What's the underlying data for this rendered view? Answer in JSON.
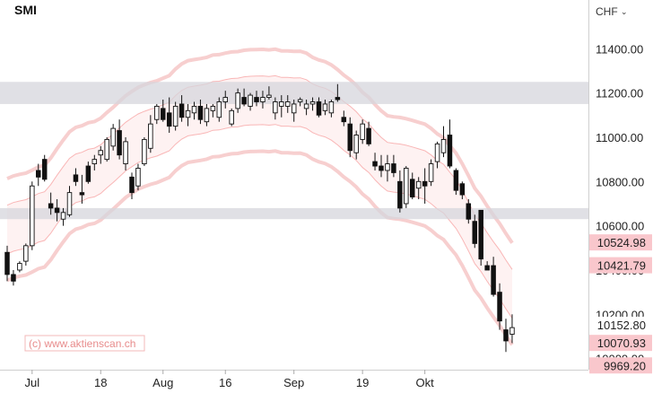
{
  "chart_data": {
    "type": "candlestick",
    "title": "SMI",
    "currency_label": "CHF",
    "watermark": "(c) www.aktienscan.ch",
    "ylim": [
      9950,
      11620
    ],
    "x_ticks": [
      {
        "label": "Jul",
        "x": 4
      },
      {
        "label": "18",
        "x": 15
      },
      {
        "label": "Aug",
        "x": 25
      },
      {
        "label": "16",
        "x": 35
      },
      {
        "label": "Sep",
        "x": 46
      },
      {
        "label": "19",
        "x": 57
      },
      {
        "label": "Okt",
        "x": 67
      }
    ],
    "y_ticks": [
      11400,
      11200,
      11000,
      10800,
      10600,
      10400,
      10200,
      10000
    ],
    "price_labels": [
      {
        "text": "10524.98",
        "value": 10524.98,
        "highlight": true
      },
      {
        "text": "10421.79",
        "value": 10421.79,
        "highlight": true
      },
      {
        "text": "10152.80",
        "value": 10152.8,
        "highlight": false
      },
      {
        "text": "10070.93",
        "value": 10070.93,
        "highlight": true
      },
      {
        "text": "9969.20",
        "value": 9969.2,
        "highlight": true
      }
    ],
    "zones": [
      {
        "from": 11150,
        "to": 11250
      },
      {
        "from": 10630,
        "to": 10680
      }
    ],
    "candles": [
      [
        0,
        10480,
        10510,
        10350,
        10380
      ],
      [
        1,
        10380,
        10400,
        10330,
        10350
      ],
      [
        2,
        10400,
        10440,
        10390,
        10430
      ],
      [
        3,
        10440,
        10520,
        10420,
        10510
      ],
      [
        4,
        10510,
        10800,
        10490,
        10780
      ],
      [
        5,
        10850,
        10880,
        10780,
        10820
      ],
      [
        6,
        10900,
        10920,
        10800,
        10810
      ],
      [
        7,
        10700,
        10750,
        10650,
        10680
      ],
      [
        8,
        10680,
        10720,
        10620,
        10660
      ],
      [
        9,
        10630,
        10680,
        10600,
        10660
      ],
      [
        10,
        10650,
        10780,
        10640,
        10750
      ],
      [
        11,
        10830,
        10860,
        10780,
        10800
      ],
      [
        12,
        10750,
        10830,
        10700,
        10740
      ],
      [
        13,
        10870,
        10890,
        10790,
        10800
      ],
      [
        14,
        10880,
        10920,
        10850,
        10900
      ],
      [
        15,
        10920,
        10960,
        10880,
        10940
      ],
      [
        16,
        10900,
        11000,
        10890,
        10990
      ],
      [
        17,
        10960,
        11060,
        10940,
        11040
      ],
      [
        18,
        11030,
        11080,
        10900,
        10920
      ],
      [
        19,
        10880,
        11000,
        10850,
        10980
      ],
      [
        20,
        10820,
        10840,
        10720,
        10750
      ],
      [
        21,
        10780,
        10880,
        10760,
        10860
      ],
      [
        22,
        10880,
        11000,
        10870,
        10990
      ],
      [
        23,
        10950,
        11100,
        10930,
        11060
      ],
      [
        24,
        11080,
        11150,
        11060,
        11140
      ],
      [
        25,
        11130,
        11170,
        11070,
        11080
      ],
      [
        26,
        11110,
        11180,
        11020,
        11050
      ],
      [
        27,
        11050,
        11160,
        11030,
        11140
      ],
      [
        28,
        11150,
        11190,
        11070,
        11090
      ],
      [
        29,
        11090,
        11150,
        11050,
        11120
      ],
      [
        30,
        11110,
        11160,
        11080,
        11140
      ],
      [
        31,
        11140,
        11170,
        11060,
        11080
      ],
      [
        32,
        11070,
        11150,
        11050,
        11130
      ],
      [
        33,
        11120,
        11150,
        11090,
        11140
      ],
      [
        34,
        11090,
        11180,
        11070,
        11160
      ],
      [
        35,
        11160,
        11210,
        11130,
        11180
      ],
      [
        36,
        11060,
        11130,
        11050,
        11120
      ],
      [
        37,
        11130,
        11220,
        11110,
        11200
      ],
      [
        38,
        11180,
        11220,
        11140,
        11150
      ],
      [
        39,
        11140,
        11200,
        11120,
        11190
      ],
      [
        40,
        11180,
        11210,
        11140,
        11160
      ],
      [
        41,
        11160,
        11210,
        11130,
        11180
      ],
      [
        42,
        11180,
        11230,
        11170,
        11190
      ],
      [
        43,
        11110,
        11180,
        11080,
        11160
      ],
      [
        44,
        11140,
        11190,
        11090,
        11160
      ],
      [
        45,
        11140,
        11190,
        11110,
        11160
      ],
      [
        46,
        11110,
        11170,
        11070,
        11150
      ],
      [
        47,
        11160,
        11180,
        11140,
        11170
      ],
      [
        48,
        11130,
        11170,
        11100,
        11150
      ],
      [
        49,
        11150,
        11180,
        11120,
        11160
      ],
      [
        50,
        11160,
        11180,
        11090,
        11100
      ],
      [
        51,
        11120,
        11170,
        11100,
        11150
      ],
      [
        52,
        11110,
        11170,
        11090,
        11160
      ],
      [
        53,
        11180,
        11240,
        11160,
        11170
      ],
      [
        54,
        11090,
        11120,
        11050,
        11070
      ],
      [
        55,
        11060,
        11090,
        10910,
        10940
      ],
      [
        56,
        10930,
        11030,
        10900,
        11010
      ],
      [
        57,
        10990,
        11080,
        10970,
        11060
      ],
      [
        58,
        11040,
        11070,
        10960,
        10970
      ],
      [
        59,
        10890,
        10930,
        10850,
        10870
      ],
      [
        60,
        10870,
        10920,
        10820,
        10850
      ],
      [
        61,
        10850,
        10920,
        10800,
        10880
      ],
      [
        62,
        10880,
        10920,
        10820,
        10840
      ],
      [
        63,
        10800,
        10850,
        10660,
        10680
      ],
      [
        64,
        10700,
        10870,
        10680,
        10860
      ],
      [
        65,
        10810,
        10840,
        10720,
        10730
      ],
      [
        66,
        10770,
        10820,
        10720,
        10800
      ],
      [
        67,
        10800,
        10860,
        10700,
        10780
      ],
      [
        68,
        10800,
        10900,
        10780,
        10880
      ],
      [
        69,
        10890,
        10980,
        10860,
        10970
      ],
      [
        70,
        10930,
        11050,
        10910,
        10990
      ],
      [
        71,
        11010,
        11080,
        10860,
        10870
      ],
      [
        72,
        10850,
        10860,
        10740,
        10760
      ],
      [
        73,
        10790,
        10800,
        10720,
        10740
      ],
      [
        74,
        10700,
        10720,
        10610,
        10630
      ],
      [
        75,
        10620,
        10650,
        10500,
        10520
      ],
      [
        76,
        10670,
        10670,
        10420,
        10450
      ],
      [
        77,
        10420,
        10440,
        10400,
        10400
      ],
      [
        78,
        10420,
        10460,
        10280,
        10290
      ],
      [
        79,
        10300,
        10340,
        10130,
        10170
      ],
      [
        80,
        10130,
        10180,
        10030,
        10080
      ],
      [
        81,
        10110,
        10200,
        10070,
        10140
      ]
    ]
  }
}
